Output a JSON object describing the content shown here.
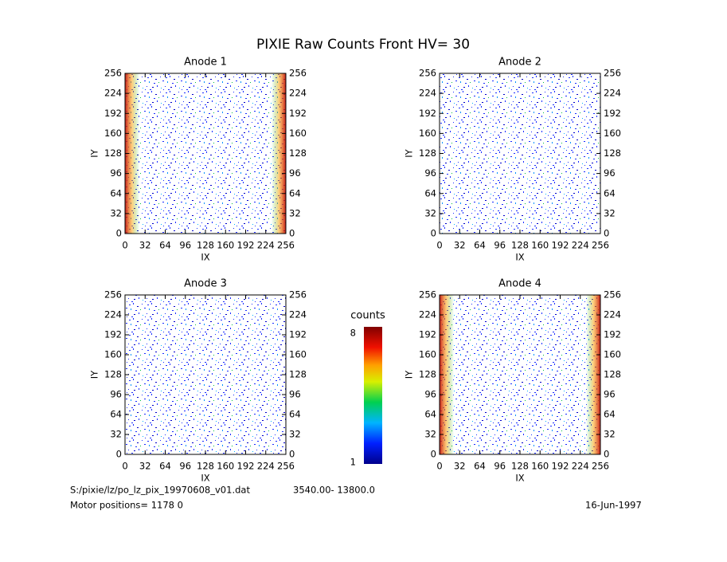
{
  "title": "PIXIE Raw Counts Front HV= 30",
  "chart_data": [
    {
      "type": "heatmap",
      "title": "Anode 1",
      "xlabel": "IX",
      "ylabel": "IY",
      "xlim": [
        0,
        256
      ],
      "ylim": [
        0,
        256
      ],
      "xticks": [
        0,
        32,
        64,
        96,
        128,
        160,
        192,
        224,
        256
      ],
      "yticks": [
        0,
        32,
        64,
        96,
        128,
        160,
        192,
        224,
        256
      ]
    },
    {
      "type": "heatmap",
      "title": "Anode 2",
      "xlabel": "IX",
      "ylabel": "IY",
      "xlim": [
        0,
        256
      ],
      "ylim": [
        0,
        256
      ],
      "xticks": [
        0,
        32,
        64,
        96,
        128,
        160,
        192,
        224,
        256
      ],
      "yticks": [
        0,
        32,
        64,
        96,
        128,
        160,
        192,
        224,
        256
      ]
    },
    {
      "type": "heatmap",
      "title": "Anode 3",
      "xlabel": "IX",
      "ylabel": "IY",
      "xlim": [
        0,
        256
      ],
      "ylim": [
        0,
        256
      ],
      "xticks": [
        0,
        32,
        64,
        96,
        128,
        160,
        192,
        224,
        256
      ],
      "yticks": [
        0,
        32,
        64,
        96,
        128,
        160,
        192,
        224,
        256
      ]
    },
    {
      "type": "heatmap",
      "title": "Anode 4",
      "xlabel": "IX",
      "ylabel": "IY",
      "xlim": [
        0,
        256
      ],
      "ylim": [
        0,
        256
      ],
      "xticks": [
        0,
        32,
        64,
        96,
        128,
        160,
        192,
        224,
        256
      ],
      "yticks": [
        0,
        32,
        64,
        96,
        128,
        160,
        192,
        224,
        256
      ]
    }
  ],
  "colorbar": {
    "label": "counts",
    "lim": [
      1,
      8
    ],
    "ticks": [
      1,
      8
    ]
  },
  "footer": {
    "file": "S:/pixie/lz/po_lz_pix_19970608_v01.dat",
    "range": "3540.00- 13800.0",
    "motor": "Motor positions= 1178 0",
    "date": "16-Jun-1997"
  }
}
